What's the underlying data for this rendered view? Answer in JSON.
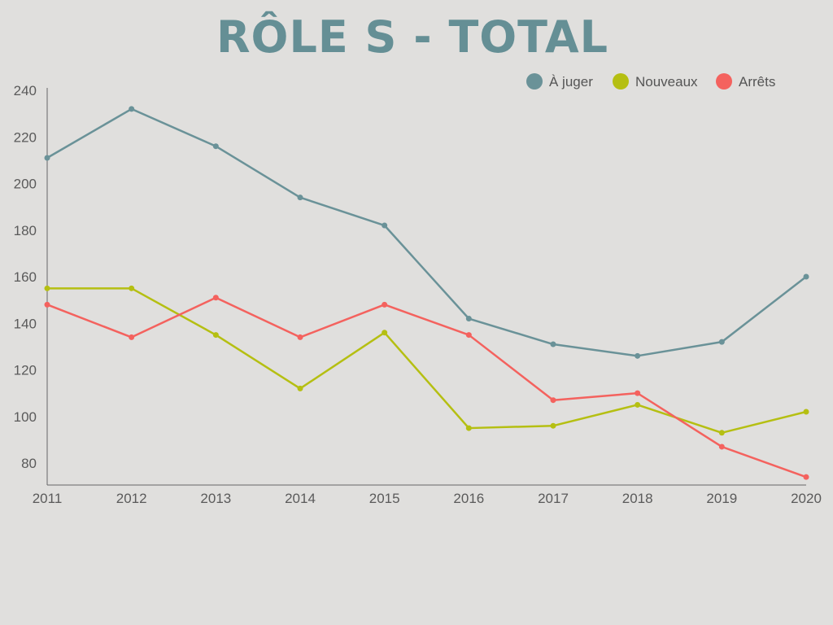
{
  "chart_data": {
    "type": "line",
    "title": "RÔLE S - TOTAL",
    "categories": [
      "2011",
      "2012",
      "2013",
      "2014",
      "2015",
      "2016",
      "2017",
      "2018",
      "2019",
      "2020"
    ],
    "yticks": [
      80,
      100,
      120,
      140,
      160,
      180,
      200,
      220,
      240
    ],
    "ylim": [
      70,
      240
    ],
    "legend_position": "top-right",
    "series": [
      {
        "name": "À juger",
        "color": "#6a9298",
        "values": [
          211,
          232,
          216,
          194,
          182,
          142,
          131,
          126,
          132,
          160
        ]
      },
      {
        "name": "Nouveaux",
        "color": "#b5bf12",
        "values": [
          155,
          155,
          135,
          112,
          136,
          95,
          96,
          105,
          93,
          102
        ]
      },
      {
        "name": "Arrêts",
        "color": "#f4625e",
        "values": [
          148,
          134,
          151,
          134,
          148,
          135,
          107,
          110,
          87,
          74
        ]
      }
    ]
  }
}
